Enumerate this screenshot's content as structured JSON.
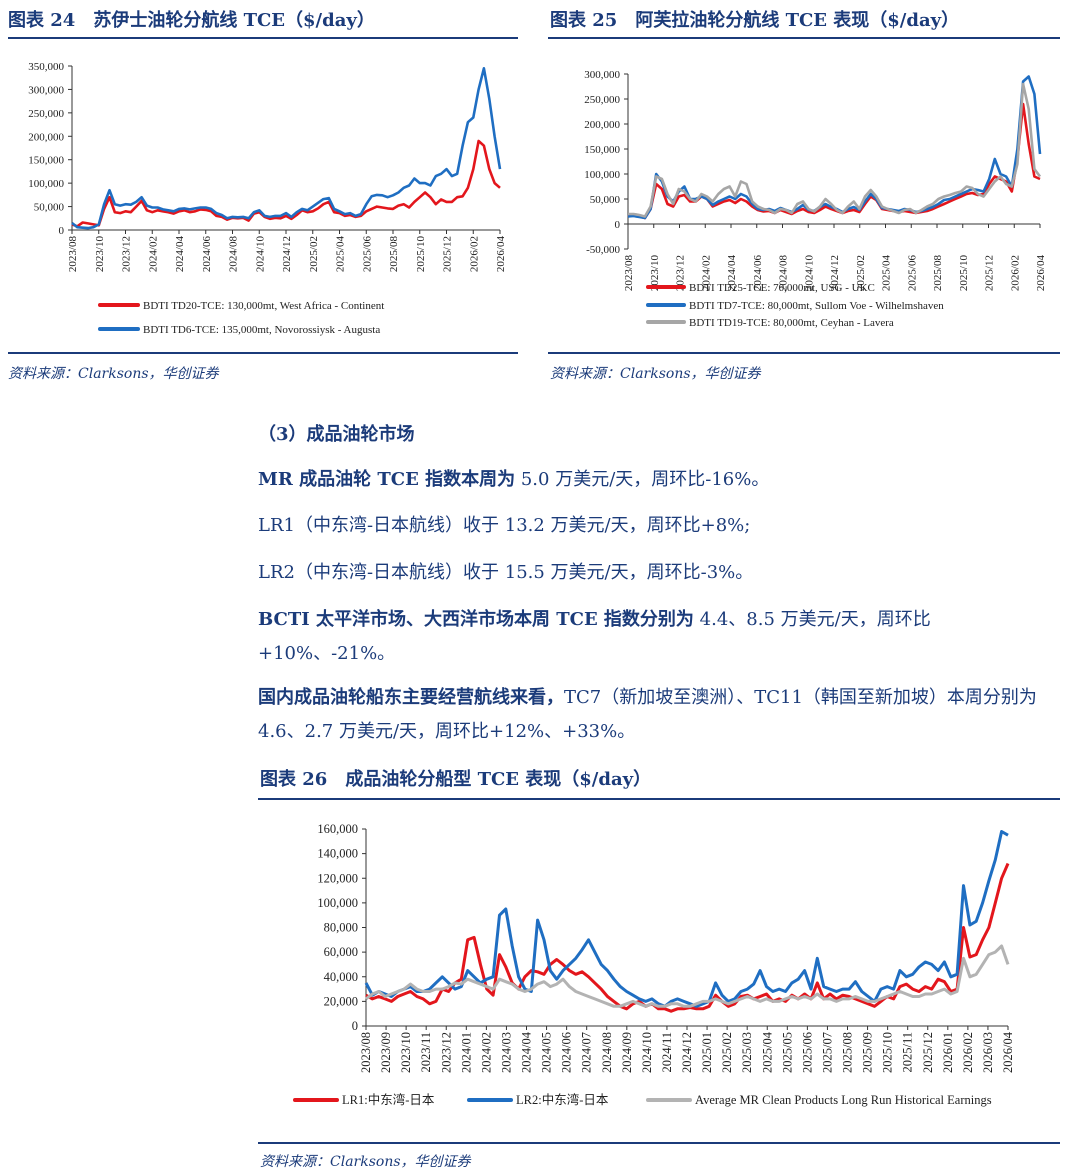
{
  "figure24": {
    "title": "图表 24　苏伊士油轮分航线 TCE（$/day）",
    "source": "资料来源：Clarksons，华创证券"
  },
  "figure25": {
    "title": "图表 25　阿芙拉油轮分航线 TCE 表现（$/day）",
    "source": "资料来源：Clarksons，华创证券"
  },
  "section": {
    "heading": "（3）成品油轮市场",
    "p1_bold": "MR 成品油轮 TCE 指数本周为",
    "p1_rest": " 5.0 万美元/天，周环比-16%。",
    "p2": "LR1（中东湾-日本航线）收于 13.2 万美元/天，周环比+8%;",
    "p3": "LR2（中东湾-日本航线）收于 15.5 万美元/天，周环比-3%。",
    "p4_bold": "BCTI 太平洋市场、大西洋市场本周 TCE 指数分别为",
    "p4_rest": " 4.4、8.5 万美元/天，周环比+10%、-21%。",
    "p5_bold": "国内成品油轮船东主要经营航线来看，",
    "p5_rest": "TC7（新加坡至澳洲）、TC11（韩国至新加坡）本周分别为 4.6、2.7 万美元/天，周环比+12%、+33%。"
  },
  "figure26": {
    "title": "图表 26　成品油轮分船型 TCE 表现（$/day）",
    "source": "资料来源：Clarksons，华创证券"
  },
  "chart_data": [
    {
      "id": "fig24",
      "type": "line",
      "ylim": [
        0,
        350000
      ],
      "yticks": [
        "0",
        "50,000",
        "100,000",
        "150,000",
        "200,000",
        "250,000",
        "300,000",
        "350,000"
      ],
      "xticks": [
        "2023/08",
        "2023/10",
        "2023/12",
        "2024/02",
        "2024/04",
        "2024/06",
        "2024/08",
        "2024/10",
        "2024/12",
        "2025/02",
        "2025/04",
        "2025/06",
        "2025/08",
        "2025/10",
        "2025/12",
        "2026/02",
        "2026/04"
      ],
      "series": [
        {
          "name": "BDTI TD20-TCE: 130,000mt, West Africa - Continent",
          "color": "#e3161c",
          "values": [
            12000,
            8000,
            16000,
            14000,
            12000,
            10000,
            45000,
            70000,
            38000,
            36000,
            40000,
            38000,
            50000,
            62000,
            42000,
            38000,
            42000,
            40000,
            38000,
            35000,
            40000,
            42000,
            38000,
            40000,
            44000,
            43000,
            40000,
            30000,
            28000,
            22000,
            26000,
            25000,
            26000,
            20000,
            35000,
            38000,
            28000,
            24000,
            26000,
            25000,
            30000,
            24000,
            32000,
            42000,
            38000,
            40000,
            46000,
            55000,
            60000,
            38000,
            36000,
            30000,
            32000,
            28000,
            30000,
            40000,
            45000,
            50000,
            48000,
            46000,
            45000,
            52000,
            55000,
            48000,
            60000,
            70000,
            80000,
            70000,
            55000,
            65000,
            60000,
            60000,
            70000,
            72000,
            90000,
            130000,
            190000,
            180000,
            130000,
            100000,
            90000
          ]
        },
        {
          "name": "BDTI TD6-TCE:  135,000mt, Novorossiysk - Augusta",
          "color": "#1f6ec2",
          "values": [
            15000,
            6000,
            5000,
            4000,
            6000,
            12000,
            55000,
            85000,
            55000,
            52000,
            55000,
            54000,
            60000,
            70000,
            52000,
            48000,
            48000,
            44000,
            42000,
            40000,
            45000,
            46000,
            44000,
            46000,
            48000,
            48000,
            45000,
            36000,
            32000,
            25000,
            28000,
            27000,
            28000,
            25000,
            38000,
            42000,
            30000,
            28000,
            30000,
            30000,
            36000,
            28000,
            38000,
            45000,
            42000,
            50000,
            58000,
            66000,
            68000,
            45000,
            40000,
            34000,
            36000,
            30000,
            34000,
            55000,
            72000,
            75000,
            74000,
            70000,
            74000,
            80000,
            90000,
            95000,
            110000,
            100000,
            100000,
            95000,
            115000,
            120000,
            130000,
            115000,
            120000,
            180000,
            230000,
            240000,
            300000,
            345000,
            280000,
            200000,
            130000
          ]
        }
      ]
    },
    {
      "id": "fig25",
      "type": "line",
      "ylim": [
        -50000,
        300000
      ],
      "yticks": [
        "-50,000",
        "0",
        "50,000",
        "100,000",
        "150,000",
        "200,000",
        "250,000",
        "300,000"
      ],
      "xticks": [
        "2023/08",
        "2023/10",
        "2023/12",
        "2024/02",
        "2024/04",
        "2024/06",
        "2024/08",
        "2024/10",
        "2024/12",
        "2025/02",
        "2025/04",
        "2025/06",
        "2025/08",
        "2025/10",
        "2025/12",
        "2026/02",
        "2026/04"
      ],
      "series": [
        {
          "name": "BDTI TD25-TCE: 70,000mt, USG - UKC",
          "color": "#e3161c",
          "values": [
            18000,
            17000,
            15000,
            12000,
            30000,
            80000,
            70000,
            40000,
            35000,
            55000,
            58000,
            45000,
            45000,
            55000,
            50000,
            35000,
            40000,
            45000,
            48000,
            42000,
            50000,
            45000,
            35000,
            28000,
            25000,
            26000,
            22000,
            28000,
            24000,
            20000,
            26000,
            30000,
            24000,
            22000,
            28000,
            35000,
            30000,
            26000,
            22000,
            26000,
            28000,
            24000,
            40000,
            55000,
            48000,
            30000,
            28000,
            26000,
            24000,
            26000,
            24000,
            22000,
            24000,
            26000,
            30000,
            35000,
            40000,
            45000,
            50000,
            55000,
            60000,
            62000,
            58000,
            60000,
            80000,
            95000,
            90000,
            85000,
            65000,
            130000,
            240000,
            160000,
            95000,
            90000
          ]
        },
        {
          "name": "BDTI TD7-TCE:  80,000mt, Sullom Voe - Wilhelmshaven",
          "color": "#1f6ec2",
          "values": [
            15000,
            16000,
            14000,
            12000,
            30000,
            100000,
            85000,
            55000,
            45000,
            65000,
            75000,
            50000,
            50000,
            55000,
            50000,
            38000,
            45000,
            50000,
            55000,
            50000,
            60000,
            55000,
            40000,
            30000,
            28000,
            30000,
            26000,
            32000,
            28000,
            24000,
            30000,
            38000,
            28000,
            26000,
            34000,
            40000,
            34000,
            30000,
            24000,
            30000,
            34000,
            28000,
            45000,
            60000,
            50000,
            32000,
            30000,
            28000,
            26000,
            30000,
            28000,
            24000,
            26000,
            30000,
            34000,
            40000,
            48000,
            50000,
            55000,
            60000,
            65000,
            70000,
            68000,
            65000,
            90000,
            130000,
            100000,
            95000,
            75000,
            150000,
            285000,
            295000,
            260000,
            140000
          ]
        },
        {
          "name": "BDTI TD19-TCE: 80,000mt, Ceyhan - Lavera",
          "color": "#a6a6a6",
          "values": [
            20000,
            20000,
            18000,
            15000,
            35000,
            95000,
            90000,
            60000,
            40000,
            70000,
            65000,
            50000,
            45000,
            60000,
            55000,
            45000,
            60000,
            70000,
            75000,
            55000,
            85000,
            80000,
            45000,
            35000,
            30000,
            28000,
            22000,
            30000,
            28000,
            22000,
            40000,
            45000,
            30000,
            25000,
            35000,
            50000,
            40000,
            28000,
            22000,
            35000,
            45000,
            30000,
            55000,
            68000,
            55000,
            35000,
            30000,
            26000,
            22000,
            28000,
            30000,
            22000,
            28000,
            35000,
            40000,
            50000,
            55000,
            58000,
            62000,
            65000,
            75000,
            72000,
            60000,
            55000,
            70000,
            85000,
            95000,
            80000,
            75000,
            120000,
            280000,
            230000,
            110000,
            95000
          ]
        }
      ]
    },
    {
      "id": "fig26",
      "type": "line",
      "ylim": [
        0,
        160000
      ],
      "yticks": [
        "0",
        "20,000",
        "40,000",
        "60,000",
        "80,000",
        "100,000",
        "120,000",
        "140,000",
        "160,000"
      ],
      "xticks": [
        "2023/08",
        "2023/09",
        "2023/10",
        "2023/11",
        "2023/12",
        "2024/01",
        "2024/02",
        "2024/03",
        "2024/04",
        "2024/05",
        "2024/06",
        "2024/07",
        "2024/08",
        "2024/09",
        "2024/10",
        "2024/11",
        "2024/12",
        "2025/01",
        "2025/02",
        "2025/03",
        "2025/04",
        "2025/05",
        "2025/06",
        "2025/07",
        "2025/08",
        "2025/09",
        "2025/10",
        "2025/11",
        "2025/12",
        "2026/01",
        "2026/02",
        "2026/03",
        "2026/04"
      ],
      "series": [
        {
          "name": "LR1:中东湾-日本",
          "color": "#e3161c",
          "values": [
            25000,
            22000,
            24000,
            22000,
            20000,
            24000,
            26000,
            28000,
            24000,
            22000,
            18000,
            20000,
            30000,
            28000,
            35000,
            38000,
            70000,
            72000,
            50000,
            30000,
            25000,
            58000,
            48000,
            35000,
            30000,
            40000,
            45000,
            44000,
            42000,
            50000,
            54000,
            50000,
            45000,
            42000,
            44000,
            40000,
            35000,
            30000,
            24000,
            20000,
            16000,
            14000,
            18000,
            20000,
            16000,
            18000,
            14000,
            14000,
            12000,
            14000,
            14000,
            15000,
            14000,
            14000,
            16000,
            25000,
            20000,
            16000,
            18000,
            24000,
            25000,
            22000,
            24000,
            26000,
            20000,
            22000,
            20000,
            25000,
            22000,
            26000,
            22000,
            35000,
            22000,
            26000,
            22000,
            25000,
            24000,
            22000,
            20000,
            18000,
            16000,
            20000,
            24000,
            22000,
            32000,
            34000,
            30000,
            28000,
            32000,
            30000,
            38000,
            36000,
            28000,
            30000,
            80000,
            56000,
            58000,
            70000,
            80000,
            100000,
            120000,
            132000
          ]
        },
        {
          "name": "LR2:中东湾-日本",
          "color": "#1f6ec2",
          "values": [
            35000,
            25000,
            28000,
            26000,
            24000,
            28000,
            30000,
            32000,
            28000,
            28000,
            30000,
            35000,
            40000,
            35000,
            30000,
            32000,
            45000,
            40000,
            35000,
            38000,
            40000,
            90000,
            95000,
            65000,
            40000,
            30000,
            28000,
            86000,
            70000,
            45000,
            38000,
            45000,
            50000,
            55000,
            62000,
            70000,
            60000,
            50000,
            45000,
            38000,
            32000,
            28000,
            25000,
            22000,
            20000,
            22000,
            18000,
            16000,
            20000,
            22000,
            20000,
            18000,
            16000,
            18000,
            20000,
            35000,
            25000,
            20000,
            22000,
            28000,
            30000,
            34000,
            45000,
            32000,
            28000,
            30000,
            28000,
            35000,
            38000,
            45000,
            30000,
            55000,
            32000,
            30000,
            28000,
            30000,
            30000,
            36000,
            28000,
            24000,
            20000,
            30000,
            32000,
            30000,
            45000,
            40000,
            42000,
            48000,
            52000,
            50000,
            45000,
            52000,
            40000,
            42000,
            114000,
            82000,
            85000,
            100000,
            118000,
            135000,
            158000,
            155000
          ]
        },
        {
          "name": "Average MR Clean Products Long Run Historical Earnings",
          "color": "#b3b3b3",
          "values": [
            22000,
            26000,
            28000,
            24000,
            26000,
            28000,
            30000,
            34000,
            30000,
            28000,
            28000,
            30000,
            30000,
            32000,
            35000,
            34000,
            38000,
            36000,
            34000,
            32000,
            30000,
            38000,
            36000,
            34000,
            30000,
            28000,
            30000,
            34000,
            36000,
            32000,
            34000,
            38000,
            32000,
            28000,
            26000,
            24000,
            22000,
            20000,
            18000,
            16000,
            16000,
            18000,
            20000,
            18000,
            16000,
            18000,
            16000,
            16000,
            18000,
            18000,
            16000,
            16000,
            18000,
            20000,
            20000,
            22000,
            20000,
            18000,
            20000,
            22000,
            24000,
            22000,
            20000,
            22000,
            20000,
            20000,
            22000,
            24000,
            22000,
            24000,
            22000,
            26000,
            22000,
            22000,
            20000,
            22000,
            22000,
            24000,
            22000,
            20000,
            20000,
            22000,
            24000,
            26000,
            28000,
            26000,
            24000,
            24000,
            26000,
            26000,
            28000,
            30000,
            26000,
            28000,
            55000,
            40000,
            42000,
            50000,
            58000,
            60000,
            65000,
            50000
          ]
        }
      ]
    }
  ]
}
